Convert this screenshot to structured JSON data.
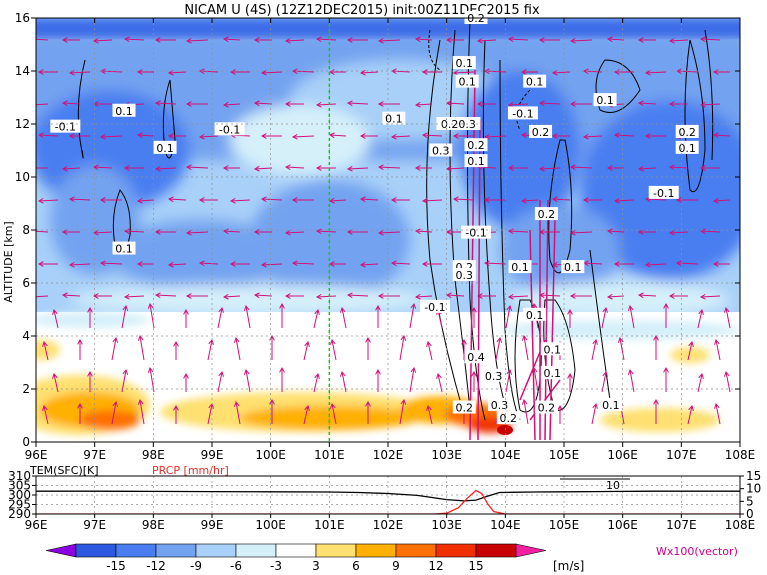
{
  "chart_data": [
    {
      "type": "heatmap",
      "title": "NICAM U (4S) (12Z12DEC2015) init:00Z11DEC2015 fix",
      "xlabel": "",
      "ylabel": "ALTITUDE [km]",
      "x_ticks": [
        "96E",
        "97E",
        "98E",
        "99E",
        "100E",
        "101E",
        "102E",
        "103E",
        "104E",
        "105E",
        "106E",
        "107E",
        "108E"
      ],
      "y_ticks": [
        "0",
        "2",
        "4",
        "6",
        "8",
        "10",
        "12",
        "14",
        "16"
      ],
      "xlim": [
        96,
        108
      ],
      "ylim": [
        0,
        16
      ],
      "reference_line_lon": 101,
      "contour_labels": [
        {
          "text": "-0.1",
          "lon": 96.5,
          "alt": 11.9
        },
        {
          "text": "0.1",
          "lon": 97.5,
          "alt": 12.5
        },
        {
          "text": "0.1",
          "lon": 98.2,
          "alt": 11.1
        },
        {
          "text": "-0.1",
          "lon": 99.3,
          "alt": 11.8
        },
        {
          "text": "0.1",
          "lon": 97.5,
          "alt": 7.3
        },
        {
          "text": "0.1",
          "lon": 103.3,
          "alt": 14.3
        },
        {
          "text": "0.1",
          "lon": 103.35,
          "alt": 13.6
        },
        {
          "text": "0.2",
          "lon": 103.5,
          "alt": 16.0
        },
        {
          "text": "0.1",
          "lon": 102.1,
          "alt": 12.2
        },
        {
          "text": "0.20.3",
          "lon": 103.2,
          "alt": 12.0
        },
        {
          "text": "0.3",
          "lon": 102.9,
          "alt": 11.0
        },
        {
          "text": "0.2",
          "lon": 103.5,
          "alt": 11.2
        },
        {
          "text": "0.1",
          "lon": 103.5,
          "alt": 10.6
        },
        {
          "text": "0.1",
          "lon": 104.5,
          "alt": 13.6
        },
        {
          "text": "-0.1",
          "lon": 104.3,
          "alt": 12.4
        },
        {
          "text": "0.2",
          "lon": 104.6,
          "alt": 11.7
        },
        {
          "text": "0.1",
          "lon": 105.7,
          "alt": 12.9
        },
        {
          "text": "0.2",
          "lon": 107.1,
          "alt": 11.7
        },
        {
          "text": "0.1",
          "lon": 107.1,
          "alt": 11.1
        },
        {
          "text": "-0.1",
          "lon": 106.7,
          "alt": 9.4
        },
        {
          "text": "0.2",
          "lon": 104.7,
          "alt": 8.6
        },
        {
          "text": "-0.1",
          "lon": 103.5,
          "alt": 7.9
        },
        {
          "text": "0.2",
          "lon": 103.3,
          "alt": 6.6
        },
        {
          "text": "0.3",
          "lon": 103.3,
          "alt": 6.3
        },
        {
          "text": "0.1",
          "lon": 104.25,
          "alt": 6.6
        },
        {
          "text": "0.1",
          "lon": 105.15,
          "alt": 6.6
        },
        {
          "text": "-0.1",
          "lon": 102.8,
          "alt": 5.1
        },
        {
          "text": "0.1",
          "lon": 104.5,
          "alt": 4.8
        },
        {
          "text": "0.4",
          "lon": 103.5,
          "alt": 3.2
        },
        {
          "text": "0.1",
          "lon": 104.8,
          "alt": 3.5
        },
        {
          "text": "0.3",
          "lon": 103.8,
          "alt": 2.5
        },
        {
          "text": "0.1",
          "lon": 104.8,
          "alt": 2.6
        },
        {
          "text": "0.2",
          "lon": 103.3,
          "alt": 1.3
        },
        {
          "text": "0.3",
          "lon": 103.9,
          "alt": 1.4
        },
        {
          "text": "0.2",
          "lon": 104.7,
          "alt": 1.3
        },
        {
          "text": "0.1",
          "lon": 105.8,
          "alt": 1.4
        },
        {
          "text": "0.2",
          "lon": 104.05,
          "alt": 0.9
        }
      ]
    },
    {
      "type": "line",
      "title": "",
      "left_label": "TEM(SFC)[K]",
      "right_label": "PRCP [mm/hr]",
      "left_ticks": [
        "310",
        "305",
        "300",
        "295",
        "290"
      ],
      "right_ticks": [
        "15",
        "10",
        "5",
        "0"
      ],
      "left_ylim": [
        290,
        310
      ],
      "right_ylim": [
        0,
        15
      ],
      "x_ticks": [
        "96E",
        "97E",
        "98E",
        "99E",
        "100E",
        "101E",
        "102E",
        "103E",
        "104E",
        "105E",
        "106E",
        "107E",
        "108E"
      ],
      "xlim": [
        96,
        108
      ],
      "contour_label": "10",
      "series": [
        {
          "name": "TEM(SFC)[K]",
          "color": "#000000",
          "x": [
            96,
            97,
            98,
            99,
            100,
            101,
            101.5,
            102,
            102.5,
            103,
            103.3,
            103.5,
            103.7,
            103.9,
            104.1,
            104.5,
            105,
            105.5,
            106,
            106.5,
            107,
            107.5,
            108
          ],
          "values": [
            302,
            302,
            301.9,
            301.8,
            301.7,
            301.6,
            301.3,
            300.8,
            299.8,
            297.6,
            296.9,
            297.3,
            299.4,
            301.3,
            301.4,
            301.6,
            301.7,
            301.8,
            301.9,
            302,
            302,
            302,
            302
          ]
        },
        {
          "name": "PRCP [mm/hr]",
          "color": "#ff2020",
          "x": [
            96,
            102.8,
            103.0,
            103.2,
            103.35,
            103.5,
            103.6,
            103.7,
            103.8,
            104.0,
            108
          ],
          "values": [
            0,
            0,
            0.3,
            2.5,
            6.2,
            9.3,
            8.0,
            4.0,
            1.0,
            0,
            0
          ]
        }
      ]
    }
  ],
  "colorbar": {
    "levels": [
      "-15",
      "-12",
      "-9",
      "-6",
      "-3",
      "3",
      "6",
      "9",
      "12",
      "15"
    ],
    "unit": "[m/s]",
    "colors": [
      "#8a00e0",
      "#2d59e0",
      "#4a7ef0",
      "#73a3f0",
      "#a8d0f8",
      "#d6f0fa",
      "#ffffff",
      "#ffe070",
      "#ffb000",
      "#ff7000",
      "#f03000",
      "#c80000",
      "#f020a0"
    ]
  },
  "vector_label": "Wx100(vector)"
}
